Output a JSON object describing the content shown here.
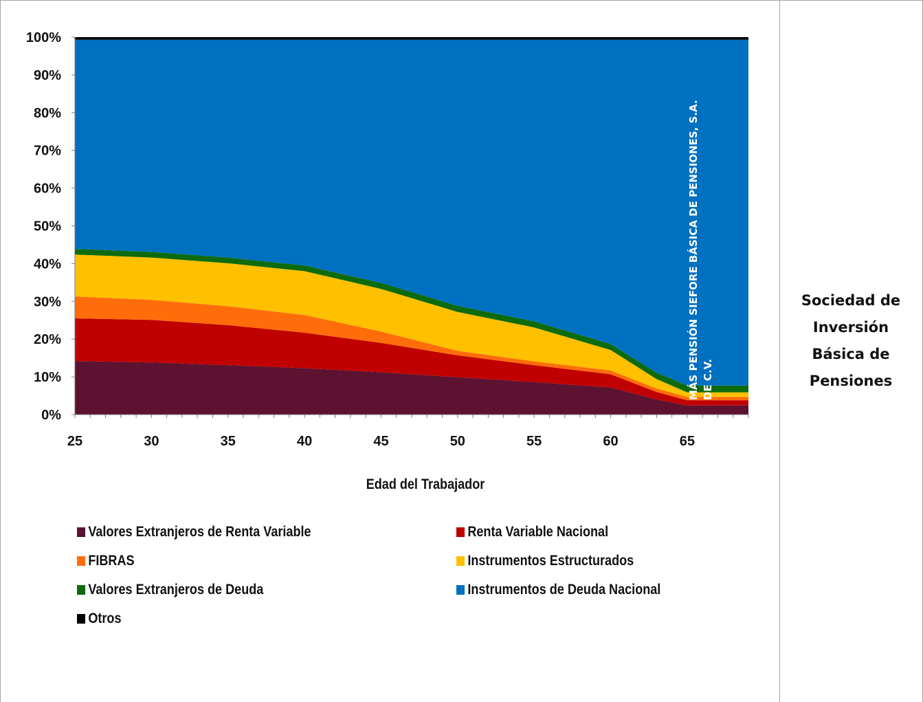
{
  "side_panel": {
    "title_lines": [
      "Sociedad de",
      "Inversión",
      "Básica de",
      "Pensiones"
    ]
  },
  "chart_data": {
    "type": "area",
    "stacked": true,
    "percent_stacked": true,
    "title": "",
    "xlabel": "Edad del Trabajador",
    "ylabel": "",
    "xlim": [
      25,
      69
    ],
    "ylim": [
      0,
      100
    ],
    "x_ticks": [
      25,
      30,
      35,
      40,
      45,
      50,
      55,
      60,
      65
    ],
    "y_ticks": [
      "0%",
      "10%",
      "20%",
      "30%",
      "40%",
      "50%",
      "60%",
      "70%",
      "80%",
      "90%",
      "100%"
    ],
    "grid": false,
    "legend_position": "bottom",
    "annotation": {
      "lines": [
        "MÁS PENSIÓN SIEFORE BÁSICA DE PENSIONES, S.A.",
        "DE C.V."
      ]
    },
    "x": [
      25,
      30,
      35,
      40,
      45,
      50,
      55,
      60,
      63,
      65,
      69
    ],
    "series": [
      {
        "name": "Valores Extranjeros de Renta Variable",
        "color": "#5c1230",
        "values": [
          14.2,
          13.8,
          13.1,
          12.3,
          11.2,
          9.9,
          8.6,
          7.2,
          4.0,
          2.4,
          2.4
        ]
      },
      {
        "name": "Renta Variable Nacional",
        "color": "#c00000",
        "values": [
          11.3,
          11.3,
          10.6,
          9.4,
          7.8,
          5.8,
          4.5,
          3.5,
          2.0,
          1.4,
          1.4
        ]
      },
      {
        "name": "FIBRAS",
        "color": "#ff6d0a",
        "values": [
          5.8,
          5.3,
          5.0,
          4.7,
          3.0,
          1.2,
          1.0,
          1.0,
          0.9,
          0.9,
          0.9
        ]
      },
      {
        "name": "Instrumentos Estructurados",
        "color": "#ffc000",
        "values": [
          11.1,
          11.2,
          11.4,
          11.6,
          11.3,
          10.3,
          9.0,
          5.4,
          2.5,
          1.2,
          1.2
        ]
      },
      {
        "name": "Valores Extranjeros de Deuda",
        "color": "#0d6b0d",
        "values": [
          1.5,
          1.5,
          1.5,
          1.5,
          1.6,
          1.6,
          1.6,
          1.6,
          1.7,
          1.8,
          1.8
        ]
      },
      {
        "name": "Instrumentos de Deuda Nacional",
        "color": "#0070c0",
        "values": [
          55.4,
          56.2,
          57.7,
          59.8,
          64.4,
          70.5,
          74.6,
          80.6,
          88.2,
          91.6,
          91.6
        ]
      },
      {
        "name": "Otros",
        "color": "#000000",
        "values": [
          0.7,
          0.7,
          0.7,
          0.7,
          0.7,
          0.7,
          0.7,
          0.7,
          0.7,
          0.7,
          0.7
        ]
      }
    ]
  }
}
